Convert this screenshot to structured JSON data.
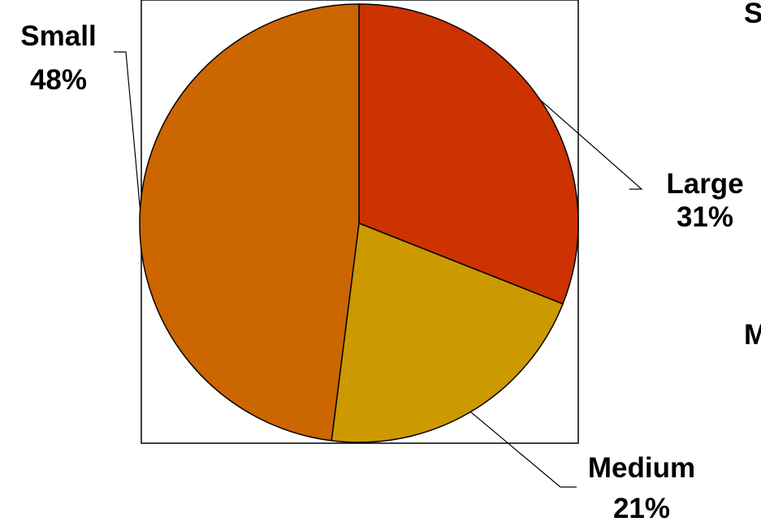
{
  "chart_data": {
    "type": "pie",
    "title": "",
    "slices": [
      {
        "label": "Large",
        "percent_label": "31%",
        "value": 31,
        "color": "#cc3300"
      },
      {
        "label": "Medium",
        "percent_label": "21%",
        "value": 21,
        "color": "#cc9900"
      },
      {
        "label": "Small",
        "percent_label": "48%",
        "value": 48,
        "color": "#cc6600"
      }
    ],
    "start_angle_deg": 0,
    "direction": "clockwise",
    "plot_border": true
  },
  "edge_fragments": {
    "top_right": "S",
    "mid_right": "M"
  },
  "colors": {
    "outline": "#000000",
    "background": "#ffffff"
  }
}
